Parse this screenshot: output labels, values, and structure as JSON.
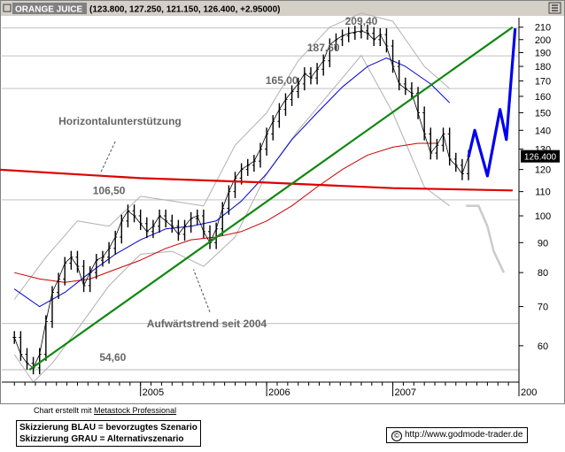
{
  "header": {
    "instrument": "ORANGE JUICE",
    "quote": "(123.800, 127.250, 121.150, 126.400, +2.95000)"
  },
  "footer": {
    "credit_prefix": "Chart erstellt mit",
    "credit_product": "Metastock Professional",
    "legend_blue": "Skizzierung BLAU = bevorzugtes Szenario",
    "legend_gray": "Skizzierung GRAU = Alternativszenario",
    "url": "http://www.godmode-trader.de",
    "url_icon": "©"
  },
  "chart_data": {
    "type": "line",
    "scale": "log",
    "ylim": [
      52,
      218
    ],
    "y_ticks": [
      60,
      70,
      80,
      90,
      100,
      110,
      120,
      130,
      140,
      150,
      160,
      170,
      180,
      190,
      200,
      210
    ],
    "x_ticks": [
      "2005",
      "2006",
      "2007",
      "200"
    ],
    "last_price": "126.400",
    "price_labels": [
      {
        "text": "209,40",
        "x": 2006.75,
        "y": 212
      },
      {
        "text": "187,60",
        "x": 2006.45,
        "y": 191
      },
      {
        "text": "165,00",
        "x": 2006.12,
        "y": 168
      },
      {
        "text": "106,50",
        "x": 2004.75,
        "y": 109
      },
      {
        "text": "54,60",
        "x": 2004.78,
        "y": 56.5
      }
    ],
    "annotations": [
      {
        "text": "Horizontalunterstützung",
        "x": 2004.35,
        "y": 143
      },
      {
        "text": "Aufwärtstrend seit 2004",
        "x": 2005.05,
        "y": 64.5
      }
    ],
    "price": [
      [
        2004.0,
        62
      ],
      [
        2004.05,
        58
      ],
      [
        2004.1,
        56
      ],
      [
        2004.15,
        55
      ],
      [
        2004.2,
        58
      ],
      [
        2004.25,
        66
      ],
      [
        2004.3,
        74
      ],
      [
        2004.35,
        78
      ],
      [
        2004.4,
        83
      ],
      [
        2004.45,
        85
      ],
      [
        2004.5,
        82
      ],
      [
        2004.55,
        76
      ],
      [
        2004.6,
        80
      ],
      [
        2004.65,
        84
      ],
      [
        2004.7,
        85
      ],
      [
        2004.75,
        88
      ],
      [
        2004.8,
        92
      ],
      [
        2004.85,
        98
      ],
      [
        2004.9,
        102
      ],
      [
        2004.95,
        100
      ],
      [
        2005.0,
        97
      ],
      [
        2005.05,
        94
      ],
      [
        2005.1,
        96
      ],
      [
        2005.15,
        100
      ],
      [
        2005.2,
        98
      ],
      [
        2005.25,
        96
      ],
      [
        2005.3,
        93
      ],
      [
        2005.35,
        96
      ],
      [
        2005.4,
        99
      ],
      [
        2005.45,
        100
      ],
      [
        2005.5,
        94
      ],
      [
        2005.55,
        90
      ],
      [
        2005.6,
        95
      ],
      [
        2005.65,
        103
      ],
      [
        2005.7,
        110
      ],
      [
        2005.75,
        116
      ],
      [
        2005.8,
        120
      ],
      [
        2005.85,
        122
      ],
      [
        2005.9,
        124
      ],
      [
        2005.95,
        130
      ],
      [
        2006.0,
        138
      ],
      [
        2006.05,
        145
      ],
      [
        2006.1,
        152
      ],
      [
        2006.15,
        158
      ],
      [
        2006.2,
        163
      ],
      [
        2006.25,
        168
      ],
      [
        2006.3,
        175
      ],
      [
        2006.35,
        172
      ],
      [
        2006.4,
        178
      ],
      [
        2006.45,
        184
      ],
      [
        2006.5,
        196
      ],
      [
        2006.55,
        200
      ],
      [
        2006.6,
        203
      ],
      [
        2006.65,
        205
      ],
      [
        2006.7,
        206
      ],
      [
        2006.75,
        207
      ],
      [
        2006.8,
        205
      ],
      [
        2006.85,
        200
      ],
      [
        2006.9,
        204
      ],
      [
        2006.95,
        195
      ],
      [
        2007.0,
        180
      ],
      [
        2007.05,
        168
      ],
      [
        2007.1,
        165
      ],
      [
        2007.15,
        162
      ],
      [
        2007.2,
        150
      ],
      [
        2007.25,
        138
      ],
      [
        2007.3,
        128
      ],
      [
        2007.35,
        132
      ],
      [
        2007.4,
        138
      ],
      [
        2007.45,
        125
      ],
      [
        2007.5,
        122
      ],
      [
        2007.55,
        118
      ],
      [
        2007.6,
        126.4
      ]
    ],
    "series": [
      {
        "role": "ma-blue",
        "color": "#0000cc",
        "points": [
          [
            2004.0,
            75
          ],
          [
            2004.2,
            70
          ],
          [
            2004.4,
            74
          ],
          [
            2004.6,
            80
          ],
          [
            2004.8,
            86
          ],
          [
            2005.0,
            91
          ],
          [
            2005.2,
            95
          ],
          [
            2005.4,
            96
          ],
          [
            2005.6,
            98
          ],
          [
            2005.8,
            106
          ],
          [
            2006.0,
            118
          ],
          [
            2006.2,
            135
          ],
          [
            2006.4,
            150
          ],
          [
            2006.6,
            166
          ],
          [
            2006.8,
            180
          ],
          [
            2006.95,
            186
          ],
          [
            2007.1,
            180
          ],
          [
            2007.3,
            168
          ],
          [
            2007.45,
            156
          ]
        ]
      },
      {
        "role": "ma-red",
        "color": "#cc0000",
        "points": [
          [
            2004.0,
            80
          ],
          [
            2004.2,
            78
          ],
          [
            2004.4,
            77
          ],
          [
            2004.6,
            78
          ],
          [
            2004.8,
            81
          ],
          [
            2005.0,
            84
          ],
          [
            2005.2,
            88
          ],
          [
            2005.4,
            91
          ],
          [
            2005.6,
            92
          ],
          [
            2005.8,
            94
          ],
          [
            2006.0,
            98
          ],
          [
            2006.2,
            104
          ],
          [
            2006.4,
            112
          ],
          [
            2006.6,
            120
          ],
          [
            2006.8,
            127
          ],
          [
            2007.0,
            131
          ],
          [
            2007.2,
            133
          ],
          [
            2007.35,
            133
          ]
        ]
      },
      {
        "role": "bollinger-upper",
        "color": "#b0b0b0",
        "points": [
          [
            2004.0,
            72
          ],
          [
            2004.25,
            85
          ],
          [
            2004.5,
            98
          ],
          [
            2004.75,
            96
          ],
          [
            2005.0,
            108
          ],
          [
            2005.25,
            106
          ],
          [
            2005.5,
            104
          ],
          [
            2005.75,
            132
          ],
          [
            2006.0,
            150
          ],
          [
            2006.25,
            184
          ],
          [
            2006.5,
            210
          ],
          [
            2006.75,
            222
          ],
          [
            2007.0,
            215
          ],
          [
            2007.25,
            180
          ],
          [
            2007.45,
            165
          ]
        ]
      },
      {
        "role": "bollinger-lower",
        "color": "#b0b0b0",
        "points": [
          [
            2004.0,
            58
          ],
          [
            2004.15,
            52
          ],
          [
            2004.3,
            56
          ],
          [
            2004.5,
            64
          ],
          [
            2004.75,
            76
          ],
          [
            2005.0,
            86
          ],
          [
            2005.25,
            87
          ],
          [
            2005.5,
            82
          ],
          [
            2005.75,
            92
          ],
          [
            2006.0,
            118
          ],
          [
            2006.25,
            140
          ],
          [
            2006.5,
            162
          ],
          [
            2006.75,
            188
          ],
          [
            2007.0,
            150
          ],
          [
            2007.25,
            112
          ],
          [
            2007.45,
            104
          ]
        ]
      },
      {
        "role": "horizontal-support",
        "color": "#dd0000",
        "points": [
          [
            2003.85,
            120
          ],
          [
            2005.0,
            116
          ],
          [
            2006.0,
            114
          ],
          [
            2007.0,
            111.5
          ],
          [
            2007.95,
            110.5
          ]
        ]
      },
      {
        "role": "uptrend",
        "color": "#118811",
        "points": [
          [
            2004.12,
            54.6
          ],
          [
            2007.95,
            210
          ]
        ]
      },
      {
        "role": "scenario-blue",
        "color": "#0000ee",
        "points": [
          [
            2007.6,
            126
          ],
          [
            2007.65,
            140
          ],
          [
            2007.75,
            117
          ],
          [
            2007.85,
            152
          ],
          [
            2007.9,
            135
          ],
          [
            2007.97,
            209
          ]
        ]
      },
      {
        "role": "scenario-gray",
        "color": "#cccccc",
        "points": [
          [
            2007.58,
            104
          ],
          [
            2007.68,
            104
          ],
          [
            2007.75,
            96
          ],
          [
            2007.8,
            87
          ],
          [
            2007.88,
            80
          ]
        ]
      }
    ],
    "hlines": [
      {
        "y": 209.4,
        "color": "#c8c8c8"
      },
      {
        "y": 187.6,
        "color": "#c8c8c8"
      },
      {
        "y": 165.0,
        "color": "#c8c8c8"
      },
      {
        "y": 106.5,
        "color": "#c8c8c8"
      },
      {
        "y": 65.5,
        "color": "#c8c8c8"
      },
      {
        "y": 54.6,
        "color": "#c8c8c8"
      }
    ]
  }
}
